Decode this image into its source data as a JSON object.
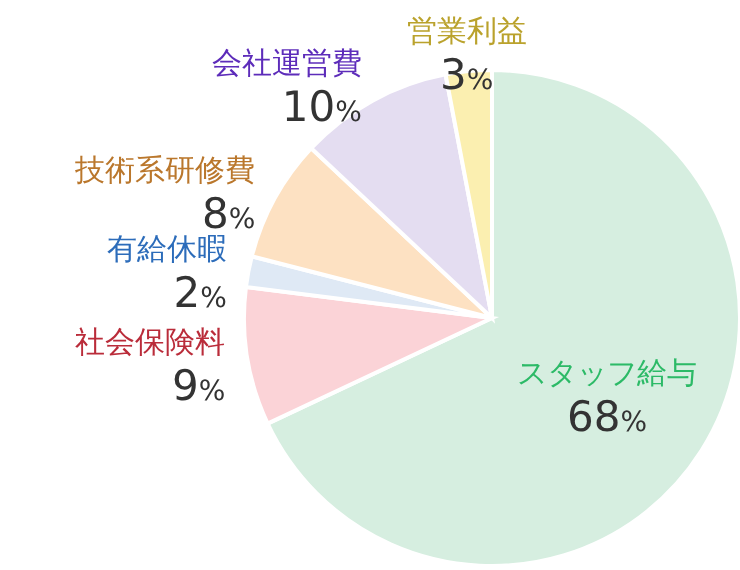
{
  "chart_data": {
    "type": "pie",
    "categories": [
      "スタッフ給与",
      "社会保険料",
      "有給休暇",
      "技術系研修費",
      "会社運営費",
      "営業利益"
    ],
    "values": [
      68,
      9,
      2,
      8,
      10,
      3
    ],
    "value_labels": [
      "68%",
      "9%",
      "2%",
      "8%",
      "10%",
      "3%"
    ],
    "colors": [
      "#d6eee0",
      "#fbd3d7",
      "#dfe9f5",
      "#fde1c2",
      "#e4ddf1",
      "#fbefb0"
    ]
  }
}
